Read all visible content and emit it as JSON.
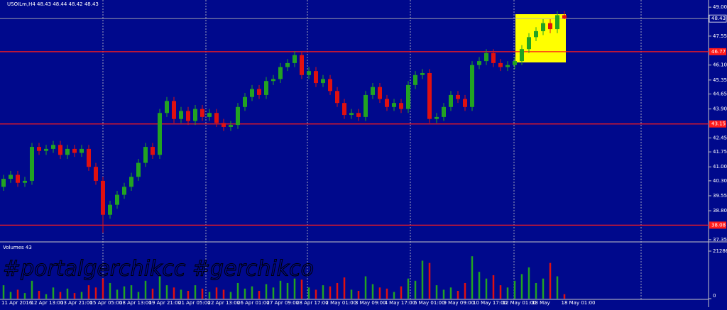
{
  "chart_data": {
    "type": "candlestick",
    "title": "USOILm,H4  48.43 48.44 48.42 48.43",
    "watermark": "#portalgerchikcc #gerchikco",
    "up_color": "#22a322",
    "down_color": "#e01010",
    "background": "#00098c",
    "ylim": [
      37.24,
      49.36
    ],
    "yticks": [
      {
        "value": 49.0,
        "label": "49.00"
      },
      {
        "value": 47.55,
        "label": "47.55"
      },
      {
        "value": 46.1,
        "label": "46.10"
      },
      {
        "value": 45.35,
        "label": "45.35"
      },
      {
        "value": 44.65,
        "label": "44.65"
      },
      {
        "value": 43.9,
        "label": "43.90"
      },
      {
        "value": 42.45,
        "label": "42.45"
      },
      {
        "value": 41.75,
        "label": "41.75"
      },
      {
        "value": 41.0,
        "label": "41.00"
      },
      {
        "value": 40.3,
        "label": "40.30"
      },
      {
        "value": 39.55,
        "label": "39.55"
      },
      {
        "value": 38.8,
        "label": "38.80"
      },
      {
        "value": 37.35,
        "label": "37.35"
      }
    ],
    "current_price": {
      "value": 48.43,
      "label": "48.43"
    },
    "levels": [
      {
        "value": 46.77,
        "label": "46.77"
      },
      {
        "value": 43.15,
        "label": "43.15"
      },
      {
        "value": 38.08,
        "label": "38.08"
      }
    ],
    "x_labels": [
      "11 Apr 2016",
      "12 Apr 13:00",
      "13 Apr 21:00",
      "15 Apr 05:00",
      "18 Apr 13:00",
      "19 Apr 21:00",
      "21 Apr 05:00",
      "22 Apr 13:00",
      "26 Apr 01:00",
      "27 Apr 09:00",
      "28 Apr 17:00",
      "2 May 01:00",
      "3 May 09:00",
      "4 May 17:00",
      "6 May 01:00",
      "9 May 09:00",
      "10 May 17:00",
      "12 May 01:00",
      "13 May",
      "18 May 01:00"
    ],
    "open": [
      40.0,
      40.4,
      40.6,
      40.2,
      40.3,
      42.0,
      41.8,
      41.9,
      42.1,
      41.6,
      41.9,
      41.7,
      41.9,
      41.0,
      40.3,
      38.6,
      39.1,
      39.6,
      40.0,
      40.5,
      41.2,
      42.0,
      41.6,
      43.7,
      44.3,
      43.4,
      43.8,
      43.3,
      43.9,
      43.5,
      43.7,
      43.2,
      43.0,
      43.1,
      44.0,
      44.5,
      44.9,
      44.6,
      45.3,
      45.4,
      46.0,
      46.2,
      46.6,
      45.6,
      45.8,
      45.2,
      45.4,
      44.8,
      44.2,
      43.6,
      43.7,
      43.5,
      44.6,
      45.0,
      44.4,
      44.0,
      44.2,
      43.9,
      45.1,
      45.6,
      45.7,
      43.4,
      43.5,
      44.0,
      44.6,
      44.4,
      44.0,
      46.1,
      46.3,
      46.7,
      46.2,
      46.0,
      46.1,
      46.3,
      46.9,
      47.5,
      47.8,
      48.2,
      47.9,
      48.6
    ],
    "high": [
      40.6,
      40.8,
      40.8,
      40.5,
      42.2,
      42.2,
      42.1,
      42.3,
      42.3,
      42.1,
      42.1,
      42.1,
      42.1,
      41.2,
      40.5,
      39.3,
      39.8,
      40.2,
      40.7,
      41.4,
      42.2,
      42.2,
      43.9,
      44.5,
      44.5,
      44.0,
      44.0,
      44.1,
      44.1,
      43.9,
      43.9,
      43.4,
      43.3,
      44.2,
      44.7,
      45.1,
      45.1,
      45.5,
      45.6,
      46.2,
      46.4,
      46.8,
      46.8,
      46.0,
      46.0,
      45.6,
      45.6,
      45.0,
      44.4,
      43.9,
      43.9,
      44.8,
      45.2,
      45.2,
      44.6,
      44.4,
      44.4,
      45.3,
      45.8,
      45.9,
      45.9,
      43.7,
      44.2,
      44.8,
      44.8,
      44.6,
      46.3,
      46.5,
      46.9,
      46.9,
      46.4,
      46.3,
      46.5,
      47.1,
      47.7,
      48.0,
      48.4,
      48.4,
      48.8,
      48.8
    ],
    "low": [
      39.8,
      40.2,
      40.0,
      40.0,
      40.1,
      41.6,
      41.6,
      41.7,
      41.4,
      41.4,
      41.5,
      41.5,
      40.8,
      40.1,
      37.7,
      38.4,
      38.9,
      39.4,
      39.8,
      40.3,
      41.0,
      41.4,
      41.4,
      43.5,
      43.2,
      43.2,
      43.1,
      43.1,
      43.3,
      43.3,
      43.0,
      42.8,
      42.8,
      42.9,
      43.8,
      44.3,
      44.4,
      44.4,
      45.1,
      45.2,
      45.8,
      46.0,
      45.4,
      45.4,
      45.0,
      45.0,
      44.6,
      44.0,
      43.4,
      43.4,
      43.3,
      43.3,
      44.4,
      44.2,
      43.8,
      43.8,
      43.7,
      43.7,
      44.9,
      45.4,
      43.2,
      43.2,
      43.3,
      43.8,
      44.2,
      43.8,
      43.8,
      45.9,
      46.1,
      46.0,
      45.8,
      45.8,
      45.9,
      46.1,
      46.7,
      47.3,
      47.6,
      47.7,
      47.7,
      48.4
    ],
    "close": [
      40.4,
      40.6,
      40.2,
      40.3,
      42.0,
      41.8,
      41.9,
      42.1,
      41.6,
      41.9,
      41.7,
      41.9,
      41.0,
      40.3,
      38.6,
      39.1,
      39.6,
      40.0,
      40.5,
      41.2,
      42.0,
      41.6,
      43.7,
      44.3,
      43.4,
      43.8,
      43.3,
      43.9,
      43.5,
      43.7,
      43.2,
      43.0,
      43.1,
      44.0,
      44.5,
      44.9,
      44.6,
      45.3,
      45.4,
      46.0,
      46.2,
      46.6,
      45.6,
      45.8,
      45.2,
      45.4,
      44.8,
      44.2,
      43.6,
      43.7,
      43.5,
      44.6,
      45.0,
      44.4,
      44.0,
      44.2,
      43.9,
      45.1,
      45.6,
      45.7,
      43.4,
      43.5,
      44.0,
      44.6,
      44.4,
      44.0,
      46.1,
      46.3,
      46.7,
      46.2,
      46.0,
      46.1,
      46.3,
      46.9,
      47.5,
      47.8,
      48.2,
      47.9,
      48.6,
      48.43
    ],
    "volume_title": "Volumes 43",
    "volume_ylim": [
      0,
      21286
    ],
    "volume_yticks": [
      21286,
      0
    ],
    "volume": [
      6000,
      3000,
      4000,
      2500,
      8000,
      3500,
      2000,
      5000,
      3000,
      4500,
      2500,
      3000,
      6000,
      5000,
      9000,
      7000,
      4000,
      5500,
      6000,
      3000,
      8000,
      4500,
      10000,
      6000,
      5000,
      4000,
      3500,
      6000,
      4500,
      3000,
      5000,
      4000,
      3000,
      7000,
      4500,
      5500,
      3500,
      6500,
      5000,
      8000,
      7000,
      9000,
      8500,
      5000,
      4000,
      6000,
      5500,
      7000,
      9500,
      4000,
      3500,
      10000,
      6500,
      5000,
      4500,
      3000,
      5500,
      9000,
      8000,
      17000,
      16000,
      6000,
      4000,
      5000,
      3500,
      7000,
      19000,
      12000,
      9000,
      10500,
      6000,
      5000,
      8000,
      11000,
      14000,
      7000,
      9000,
      16000,
      10000,
      2000
    ]
  }
}
